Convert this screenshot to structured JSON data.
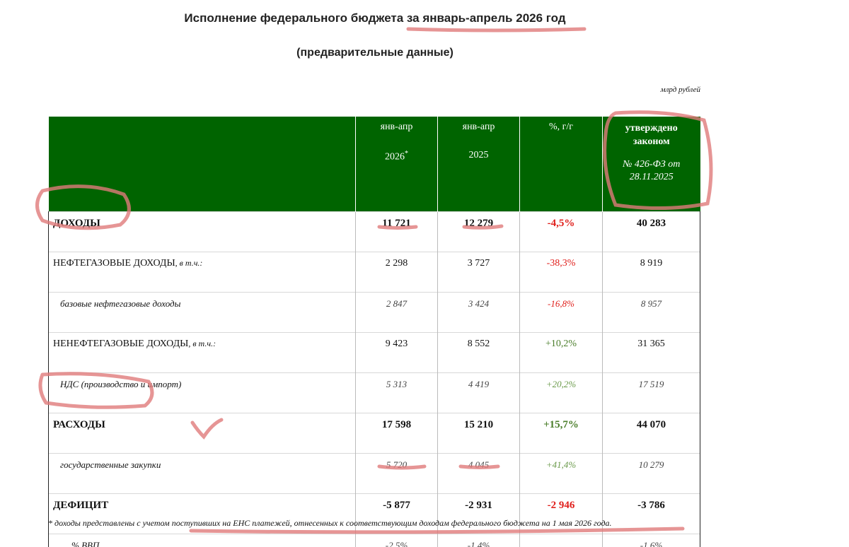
{
  "header": {
    "title": "Исполнение федерального бюджета за январь-апрель 2026 год",
    "subtitle": "(предварительные данные)",
    "unit": "млрд рублей"
  },
  "table": {
    "columns": [
      {
        "line1": "янв-апр",
        "line2": "2026",
        "mark": "*"
      },
      {
        "line1": "янв-апр",
        "line2": "2025"
      },
      {
        "line1": "%, г/г"
      },
      {
        "line1": "утверждено законом",
        "line2": "№ 426-ФЗ от 28.11.2025"
      }
    ],
    "rows": [
      {
        "label": "ДОХОДЫ",
        "values": [
          "11 721",
          "12 279",
          "-4,5%",
          "40 283"
        ]
      },
      {
        "label": "НЕФТЕГАЗОВЫЕ ДОХОДЫ",
        "note": ", в т.ч.:",
        "values": [
          "2 298",
          "3 727",
          "-38,3%",
          "8 919"
        ]
      },
      {
        "label": "базовые нефтегазовые доходы",
        "values": [
          "2 847",
          "3 424",
          "-16,8%",
          "8 957"
        ]
      },
      {
        "label": "НЕНЕФТЕГАЗОВЫЕ ДОХОДЫ",
        "note": ", в т.ч.:",
        "values": [
          "9 423",
          "8 552",
          "+10,2%",
          "31 365"
        ]
      },
      {
        "label": "НДС (производство и импорт)",
        "values": [
          "5 313",
          "4 419",
          "+20,2%",
          "17 519"
        ]
      },
      {
        "label": "РАСХОДЫ",
        "values": [
          "17 598",
          "15 210",
          "+15,7%",
          "44 070"
        ]
      },
      {
        "label": "государственные закупки",
        "values": [
          "5 720",
          "4 045",
          "+41,4%",
          "10 279"
        ]
      },
      {
        "label": "ДЕФИЦИТ",
        "values": [
          "-5 877",
          "-2 931",
          "-2 946",
          "-3 786"
        ]
      },
      {
        "label": "% ВВП",
        "values": [
          "-2,5%",
          "-1,4%",
          null,
          "-1,6%"
        ]
      }
    ]
  },
  "footnote": "* доходы представлены с учетом поступивших на ЕНС платежей, отнесенных к соответствующим доходам федерального бюджета на 1 мая 2026 года."
}
